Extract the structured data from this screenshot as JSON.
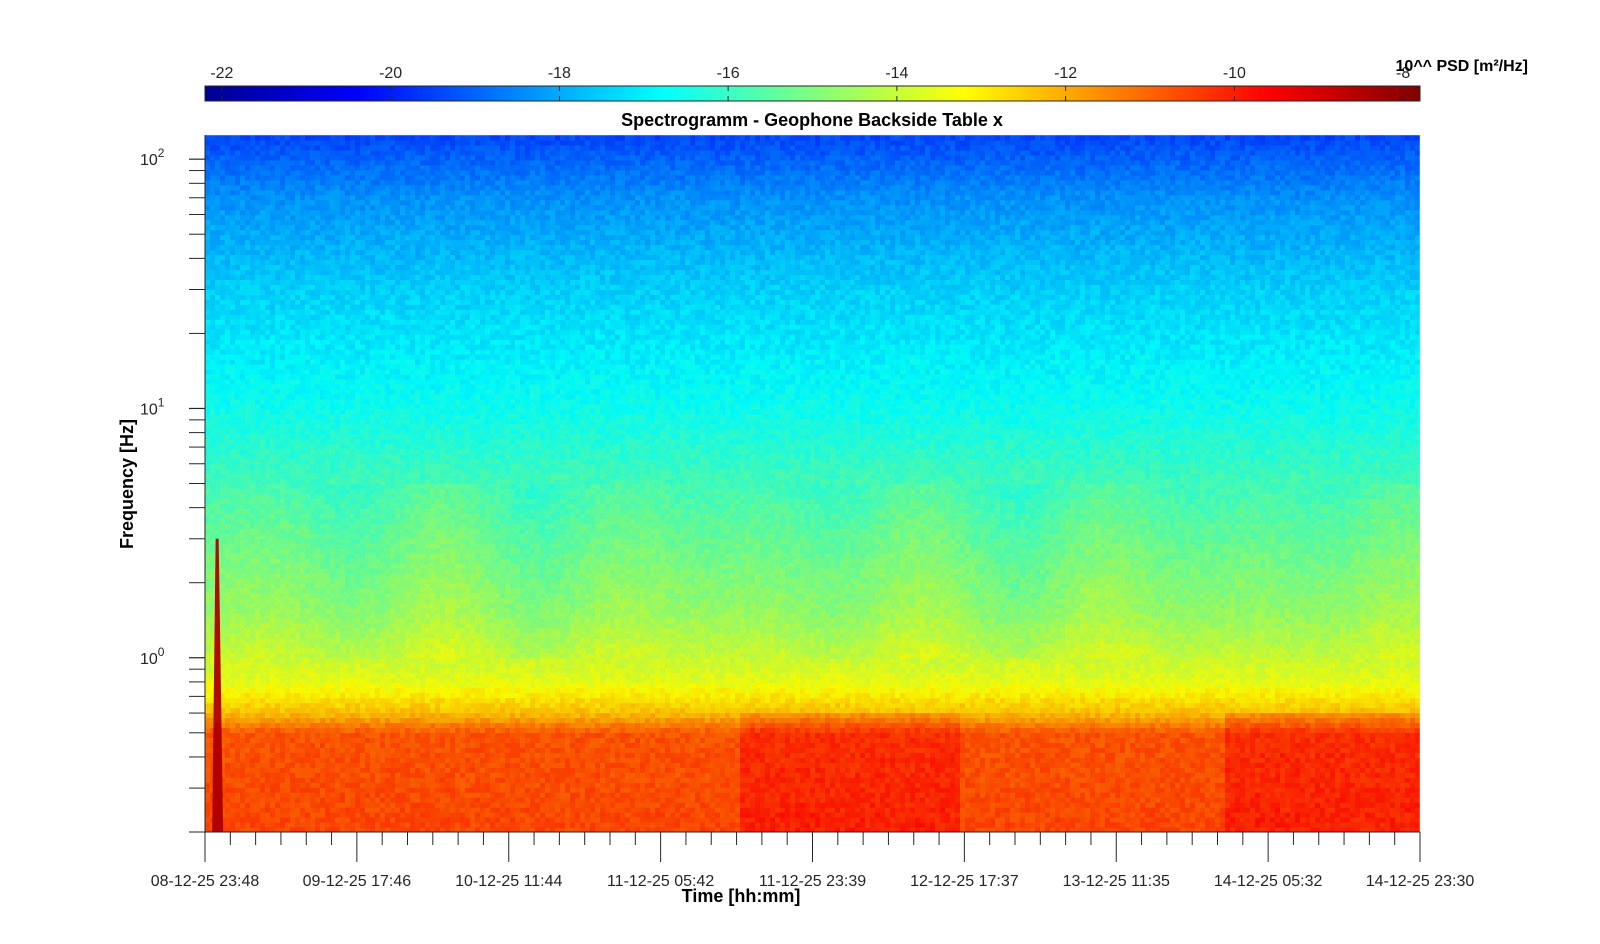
{
  "chart_data": {
    "type": "heatmap",
    "title": "Spectrogramm - Geophone Backside Table x",
    "xlabel": "Time [hh:mm]",
    "ylabel": "Frequency [Hz]",
    "x_tick_labels": [
      "08-12-25 23:48",
      "09-12-25 17:46",
      "10-12-25 11:44",
      "11-12-25 05:42",
      "11-12-25 23:39",
      "12-12-25 17:37",
      "13-12-25 11:35",
      "14-12-25 05:32",
      "14-12-25 23:30"
    ],
    "y_scale": "log",
    "ylim": [
      0.2,
      125
    ],
    "y_major_ticks": [
      {
        "value": 1,
        "base": "10",
        "exp": "0"
      },
      {
        "value": 10,
        "base": "10",
        "exp": "1"
      },
      {
        "value": 100,
        "base": "10",
        "exp": "2"
      }
    ],
    "colorbar": {
      "label": "10^^ PSD [m²/Hz]",
      "range": [
        -22.2,
        -7.8
      ],
      "ticks": [
        -22,
        -20,
        -18,
        -16,
        -14,
        -12,
        -10,
        -8
      ],
      "tick_labels": [
        "-22",
        "-20",
        "-18",
        "-16",
        "-14",
        "-12",
        "-10",
        "-8"
      ],
      "colormap": "jet",
      "placement": "top"
    },
    "psd_profile_log10": [
      {
        "freq": 0.2,
        "psd": -10.6
      },
      {
        "freq": 0.5,
        "psd": -10.8
      },
      {
        "freq": 0.6,
        "psd": -12.3
      },
      {
        "freq": 0.8,
        "psd": -13.5
      },
      {
        "freq": 1.5,
        "psd": -14.6
      },
      {
        "freq": 4,
        "psd": -15.6
      },
      {
        "freq": 10,
        "psd": -16.6
      },
      {
        "freq": 30,
        "psd": -17.4
      },
      {
        "freq": 70,
        "psd": -18.3
      },
      {
        "freq": 125,
        "psd": -19.4
      }
    ],
    "events": [
      {
        "label": "transient",
        "time_fraction": 0.01,
        "freq_max": 3,
        "psd": -8.5
      }
    ]
  }
}
